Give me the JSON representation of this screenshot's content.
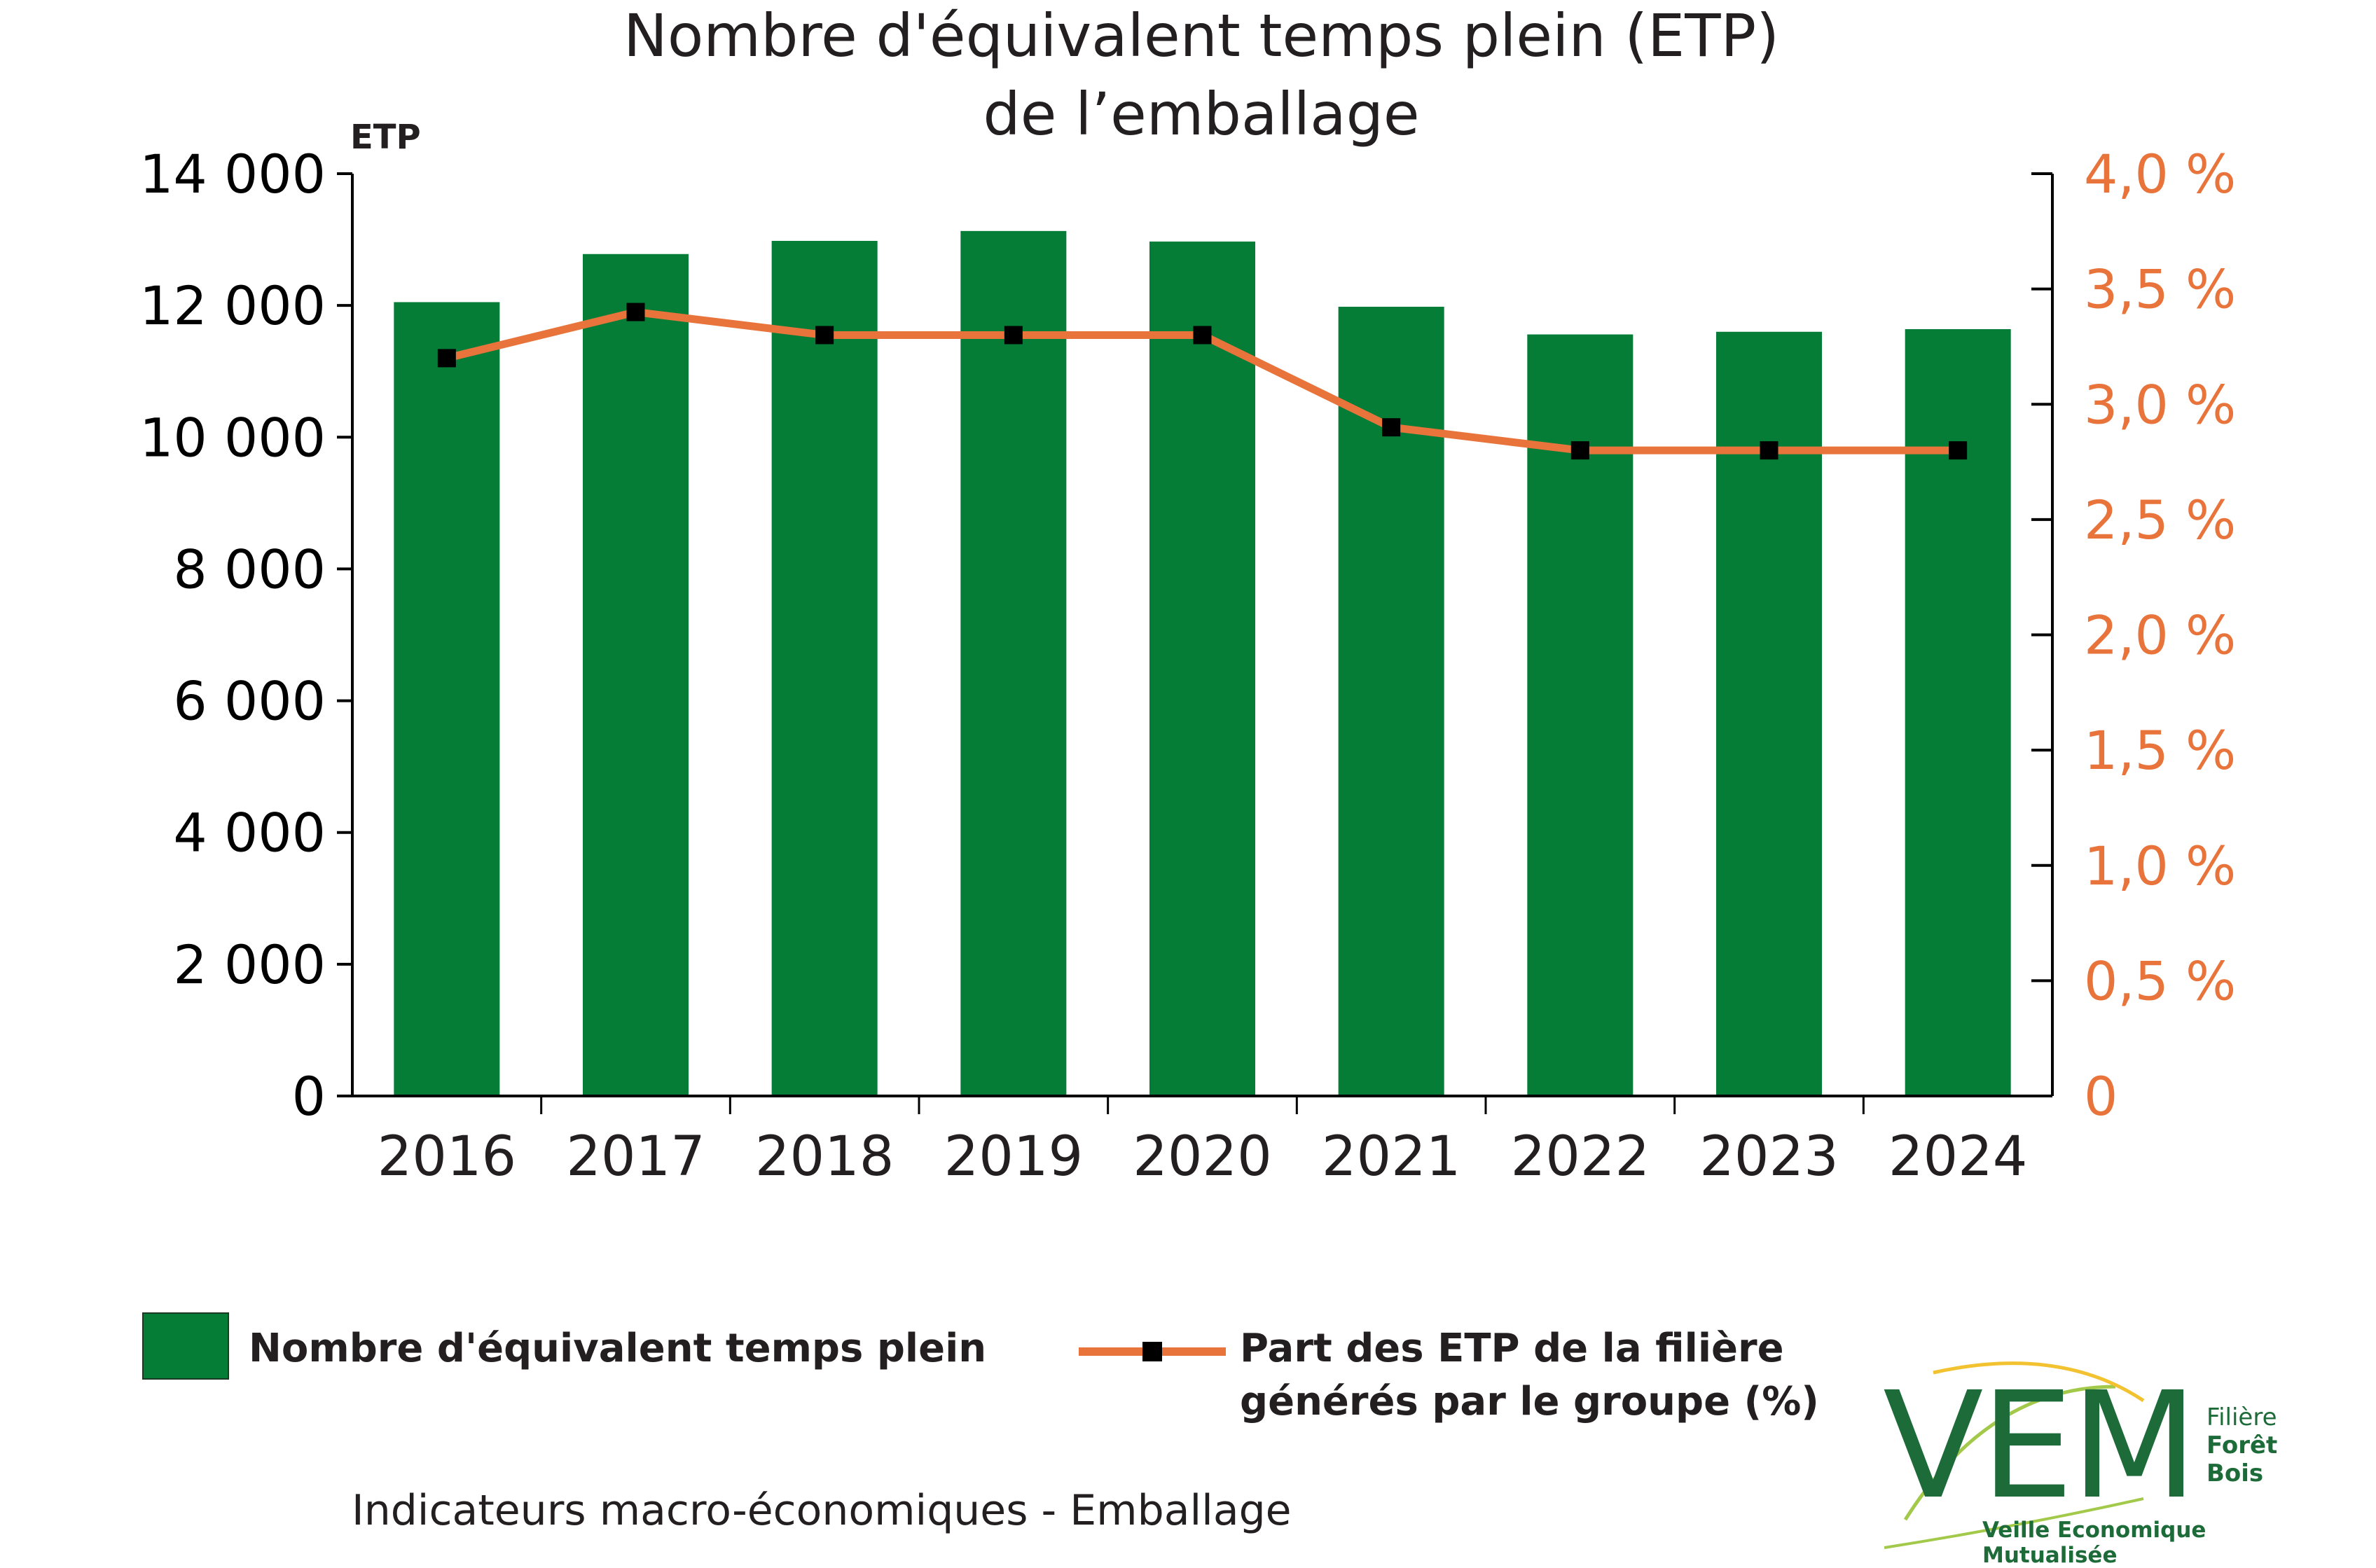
{
  "chart_data": {
    "type": "bar+line",
    "title": [
      "Nombre d'équivalent temps plein (ETP)",
      "de l’emballage"
    ],
    "left_axis": {
      "unit_label": "ETP",
      "ylim": [
        0,
        14000
      ],
      "ticks": [
        0,
        2000,
        4000,
        6000,
        8000,
        10000,
        12000,
        14000
      ],
      "tick_labels": [
        "0",
        "2 000",
        "4 000",
        "6 000",
        "8 000",
        "10 000",
        "12 000",
        "14 000"
      ]
    },
    "right_axis": {
      "ylim": [
        0,
        4.0
      ],
      "ticks": [
        0,
        0.5,
        1.0,
        1.5,
        2.0,
        2.5,
        3.0,
        3.5,
        4.0
      ],
      "tick_labels": [
        "0",
        "0,5 %",
        "1,0 %",
        "1,5 %",
        "2,0 %",
        "2,5 %",
        "3,0 %",
        "3,5 %",
        "4,0 %"
      ],
      "color": "#e8743b"
    },
    "categories": [
      "2016",
      "2017",
      "2018",
      "2019",
      "2020",
      "2021",
      "2022",
      "2023",
      "2024"
    ],
    "series": [
      {
        "name": "Nombre d'équivalent temps plein",
        "kind": "bar",
        "axis": "left",
        "color": "#067d37",
        "values": [
          12050,
          12780,
          12980,
          13130,
          12970,
          11980,
          11560,
          11600,
          11640
        ]
      },
      {
        "name": "Part des ETP de la filière générés par le groupe (%)",
        "kind": "line",
        "axis": "right",
        "color": "#e8743b",
        "marker_color": "#000000",
        "values": [
          3.2,
          3.4,
          3.3,
          3.3,
          3.3,
          2.9,
          2.8,
          2.8,
          2.8
        ]
      }
    ],
    "legend": {
      "placement": "bottom",
      "bar_label": "Nombre d'équivalent temps plein",
      "line_label_lines": [
        "Part des ETP de la filière",
        "générés par le groupe (%)"
      ]
    },
    "grid": false
  },
  "footer": "Indicateurs macro-économiques - Emballage",
  "logo": {
    "text": "VEM",
    "side_lines": [
      "Filière",
      "Forêt",
      "Bois"
    ],
    "tagline": "Veille Economique Mutualisée",
    "color": "#1e6b3a",
    "accent": "#f2c230"
  }
}
